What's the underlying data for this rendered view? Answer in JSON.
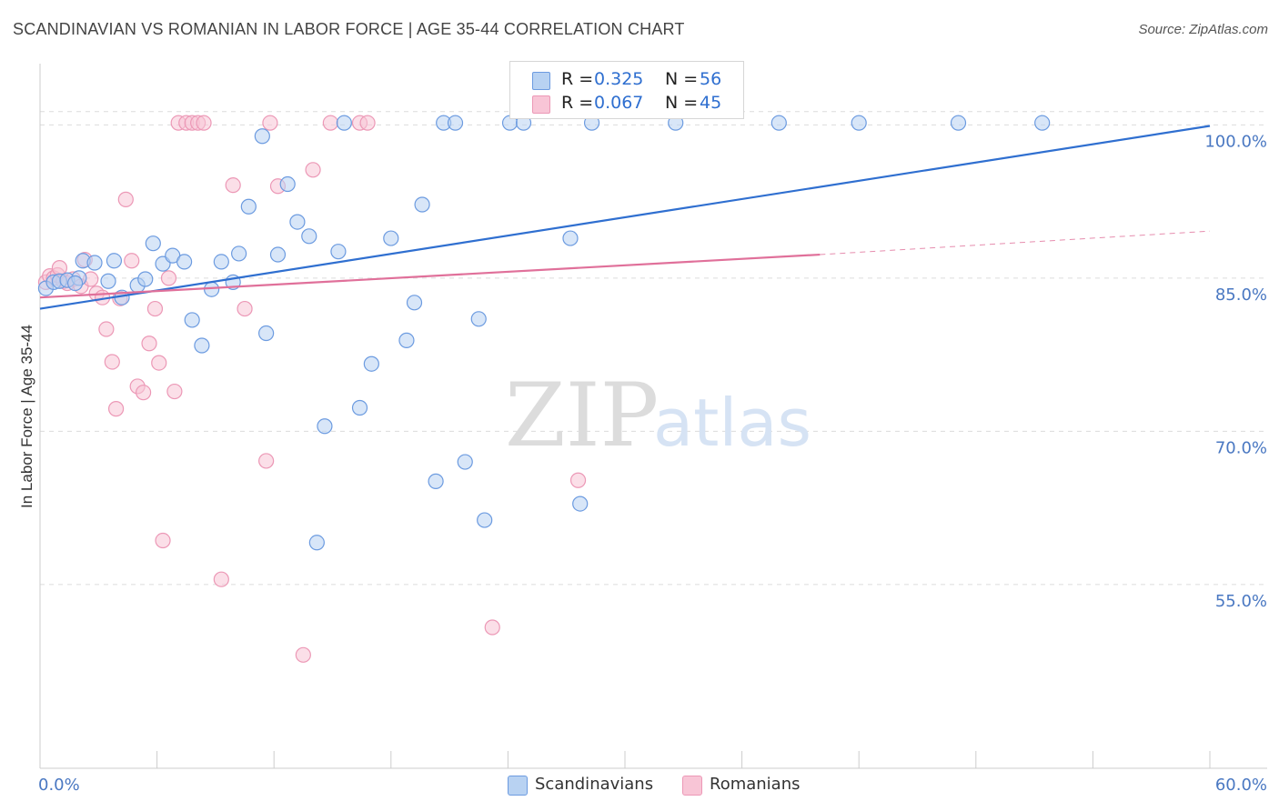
{
  "title": "SCANDINAVIAN VS ROMANIAN IN LABOR FORCE | AGE 35-44 CORRELATION CHART",
  "source": "Source: ZipAtlas.com",
  "watermark": {
    "zip": "ZIP",
    "atlas": "atlas"
  },
  "colors": {
    "blue": "#2f6fd0",
    "blue_fill": "#b8d2f2",
    "blue_stroke": "#6c9be0",
    "pink": "#e0709a",
    "pink_fill": "#f8c5d6",
    "pink_stroke": "#ec98b6",
    "grid": "#dcdcdc",
    "tick": "#4a78c2"
  },
  "legend": {
    "r_label": "R =",
    "n_label": "N =",
    "scandinavians": {
      "r": "0.325",
      "n": "56"
    },
    "romanians": {
      "r": "0.067",
      "n": "45"
    }
  },
  "bottom_legend": {
    "scandinavians": "Scandinavians",
    "romanians": "Romanians"
  },
  "chart_data": {
    "type": "scatter",
    "title": "SCANDINAVIAN VS ROMANIAN IN LABOR FORCE | AGE 35-44 CORRELATION CHART",
    "xlabel": "",
    "ylabel": "In Labor Force | Age 35-44",
    "xlim": [
      0,
      60
    ],
    "ylim": [
      37,
      106
    ],
    "x_tick_labels": [
      "0.0%",
      "60.0%"
    ],
    "y_ticks": [
      55,
      70,
      85,
      100
    ],
    "y_tick_labels": [
      "55.0%",
      "70.0%",
      "85.0%",
      "100.0%"
    ],
    "series": [
      {
        "name": "Scandinavians",
        "r": 0.325,
        "n": 56,
        "trend": {
          "x": [
            0,
            60
          ],
          "y": [
            82.0,
            99.9
          ]
        },
        "points": [
          [
            0.3,
            84.0
          ],
          [
            0.7,
            84.6
          ],
          [
            1.0,
            84.7
          ],
          [
            1.4,
            84.8
          ],
          [
            2.0,
            85.0
          ],
          [
            2.2,
            86.7
          ],
          [
            2.8,
            86.5
          ],
          [
            3.8,
            86.7
          ],
          [
            4.2,
            83.1
          ],
          [
            5.0,
            84.3
          ],
          [
            5.4,
            84.9
          ],
          [
            5.8,
            88.4
          ],
          [
            6.3,
            86.4
          ],
          [
            6.8,
            87.2
          ],
          [
            7.4,
            86.6
          ],
          [
            7.8,
            80.9
          ],
          [
            8.3,
            78.4
          ],
          [
            8.8,
            83.9
          ],
          [
            9.3,
            86.6
          ],
          [
            9.9,
            84.6
          ],
          [
            10.2,
            87.4
          ],
          [
            10.7,
            92.0
          ],
          [
            11.4,
            98.9
          ],
          [
            11.6,
            79.6
          ],
          [
            12.2,
            87.3
          ],
          [
            12.7,
            94.2
          ],
          [
            13.2,
            90.5
          ],
          [
            13.8,
            89.1
          ],
          [
            14.2,
            59.1
          ],
          [
            14.6,
            70.5
          ],
          [
            15.3,
            87.6
          ],
          [
            15.6,
            100.2
          ],
          [
            16.4,
            72.3
          ],
          [
            17.0,
            76.6
          ],
          [
            18.0,
            88.9
          ],
          [
            18.8,
            78.9
          ],
          [
            19.2,
            82.6
          ],
          [
            19.6,
            92.2
          ],
          [
            20.3,
            65.1
          ],
          [
            20.7,
            100.2
          ],
          [
            21.3,
            100.2
          ],
          [
            21.8,
            67.0
          ],
          [
            22.5,
            81.0
          ],
          [
            22.8,
            61.3
          ],
          [
            24.1,
            100.2
          ],
          [
            24.8,
            100.2
          ],
          [
            27.2,
            88.9
          ],
          [
            27.7,
            62.9
          ],
          [
            28.3,
            100.2
          ],
          [
            32.6,
            100.2
          ],
          [
            37.9,
            100.2
          ],
          [
            42.0,
            100.2
          ],
          [
            47.1,
            100.2
          ],
          [
            51.4,
            100.2
          ],
          [
            3.5,
            84.7
          ],
          [
            1.8,
            84.5
          ]
        ]
      },
      {
        "name": "Romanians",
        "r": 0.067,
        "n": 45,
        "trend": {
          "x": [
            0,
            40
          ],
          "y": [
            83.1,
            87.3
          ]
        },
        "trend_dashed": {
          "x": [
            40,
            60
          ],
          "y": [
            87.3,
            89.6
          ]
        },
        "points": [
          [
            0.3,
            84.6
          ],
          [
            0.5,
            85.2
          ],
          [
            0.7,
            85.0
          ],
          [
            0.9,
            85.3
          ],
          [
            1.0,
            86.0
          ],
          [
            1.2,
            84.7
          ],
          [
            1.4,
            84.5
          ],
          [
            1.7,
            84.9
          ],
          [
            2.1,
            84.2
          ],
          [
            2.3,
            86.8
          ],
          [
            2.6,
            84.9
          ],
          [
            2.9,
            83.5
          ],
          [
            3.2,
            83.1
          ],
          [
            3.4,
            80.0
          ],
          [
            3.7,
            76.8
          ],
          [
            3.9,
            72.2
          ],
          [
            4.1,
            83.0
          ],
          [
            4.4,
            92.7
          ],
          [
            4.7,
            86.7
          ],
          [
            5.0,
            74.4
          ],
          [
            5.3,
            73.8
          ],
          [
            5.6,
            78.6
          ],
          [
            5.9,
            82.0
          ],
          [
            6.1,
            76.7
          ],
          [
            6.3,
            59.3
          ],
          [
            6.6,
            85.0
          ],
          [
            6.9,
            73.9
          ],
          [
            7.1,
            100.2
          ],
          [
            7.5,
            100.2
          ],
          [
            7.8,
            100.2
          ],
          [
            8.1,
            100.2
          ],
          [
            8.4,
            100.2
          ],
          [
            9.3,
            55.5
          ],
          [
            9.9,
            94.1
          ],
          [
            10.5,
            82.0
          ],
          [
            11.6,
            67.1
          ],
          [
            11.8,
            100.2
          ],
          [
            12.2,
            94.0
          ],
          [
            13.5,
            48.1
          ],
          [
            14.0,
            95.6
          ],
          [
            14.9,
            100.2
          ],
          [
            16.4,
            100.2
          ],
          [
            16.8,
            100.2
          ],
          [
            23.2,
            50.8
          ],
          [
            27.6,
            65.2
          ]
        ]
      }
    ]
  }
}
